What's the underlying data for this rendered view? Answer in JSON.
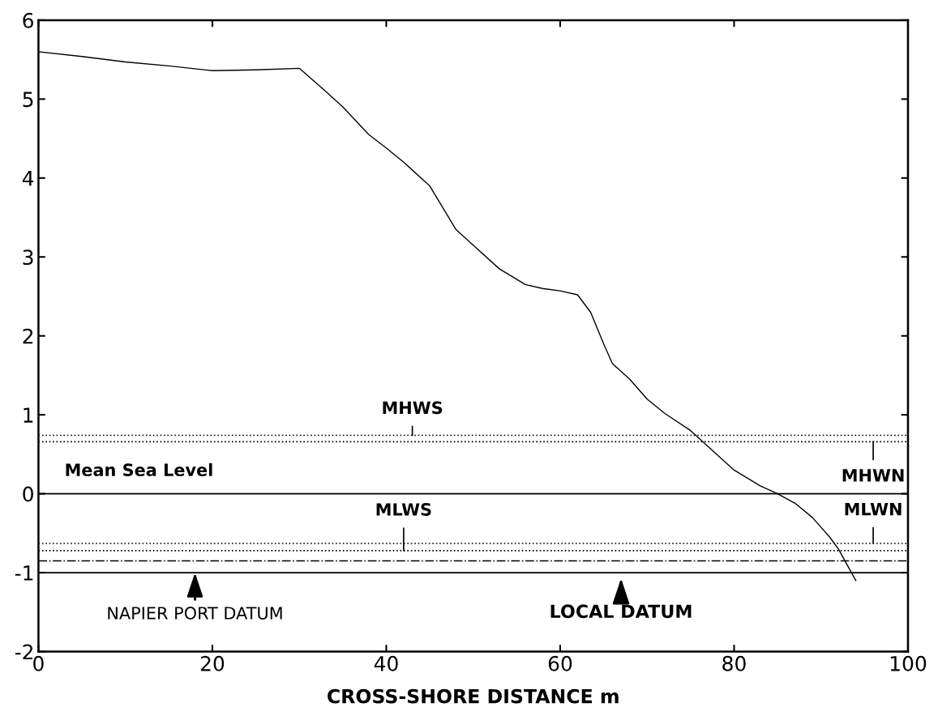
{
  "chart_data": {
    "type": "line",
    "xlabel": "CROSS-SHORE DISTANCE m",
    "series": [
      {
        "color": "#000000",
        "x": [
          0,
          5,
          10,
          15,
          20,
          25,
          30,
          33,
          35,
          38,
          40,
          42,
          45,
          48,
          50,
          53,
          56,
          58,
          60,
          62,
          63.5,
          65,
          66,
          68,
          70,
          72,
          75,
          78,
          80,
          83,
          85,
          87,
          89,
          91,
          92,
          93,
          94
        ],
        "values": [
          5.6,
          5.54,
          5.47,
          5.42,
          5.36,
          5.37,
          5.39,
          5.1,
          4.9,
          4.55,
          4.38,
          4.2,
          3.9,
          3.35,
          3.15,
          2.85,
          2.65,
          2.6,
          2.57,
          2.52,
          2.3,
          1.9,
          1.65,
          1.45,
          1.2,
          1.02,
          0.8,
          0.5,
          0.3,
          0.1,
          0,
          -0.12,
          -0.3,
          -0.55,
          -0.7,
          -0.9,
          -1.1
        ]
      }
    ],
    "xlim": [
      0,
      100
    ],
    "xticks": [
      0,
      20,
      40,
      60,
      80,
      100
    ],
    "ylim": [
      -2,
      6
    ],
    "yticks": [
      -2,
      -1,
      0,
      1,
      2,
      3,
      4,
      5,
      6
    ],
    "grid": false,
    "marker": "none",
    "line_style": "solid",
    "ref_lines": [
      {
        "axis": "y",
        "value": 0,
        "label": "Mean Sea Level",
        "color": "#000000",
        "line_style": "solid"
      },
      {
        "axis": "y",
        "value": -1,
        "color": "#000000",
        "line_style": "solid"
      },
      {
        "axis": "y",
        "value": 0.74,
        "color": "#000000",
        "line_style": "dotted"
      },
      {
        "axis": "y",
        "value": 0.66,
        "color": "#000000",
        "line_style": "dotted"
      },
      {
        "axis": "y",
        "value": -0.63,
        "color": "#000000",
        "line_style": "dotted"
      },
      {
        "axis": "y",
        "value": -0.72,
        "color": "#000000",
        "line_style": "dotted"
      },
      {
        "axis": "y",
        "value": -0.85,
        "color": "#000000",
        "line_style": "dashdot"
      }
    ],
    "annotations": [
      {
        "text": "MHWS",
        "x": 43,
        "y": 0.74
      },
      {
        "text": "MHWN",
        "x": 96,
        "y": 0.66
      },
      {
        "text": "MLWS",
        "x": 42,
        "y": -0.72
      },
      {
        "text": "MLWN",
        "x": 96,
        "y": -0.63
      },
      {
        "text": "NAPIER PORT DATUM",
        "x": 18,
        "y": -1
      },
      {
        "text": "LOCAL DATUM",
        "x": 67,
        "y": -1
      }
    ]
  }
}
